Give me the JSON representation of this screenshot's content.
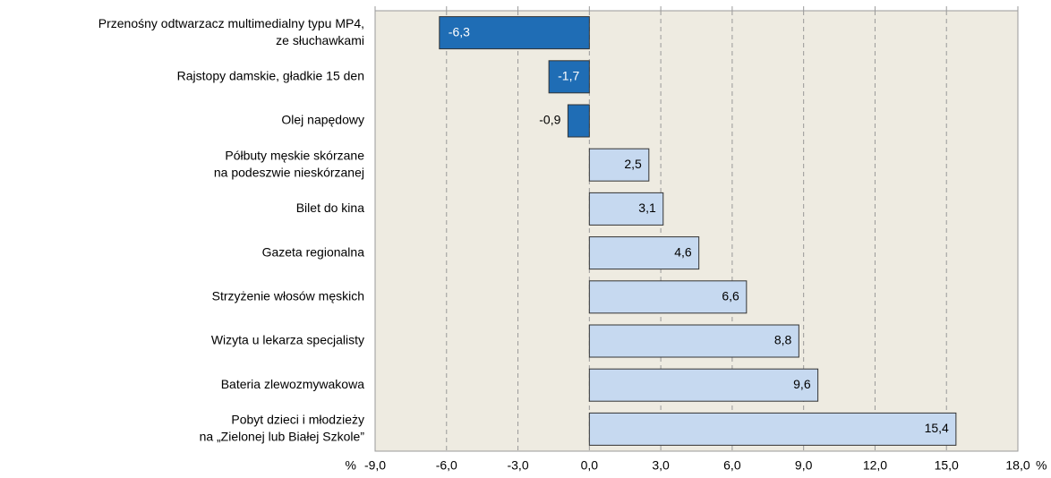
{
  "chart_data": {
    "type": "barh",
    "categories": [
      [
        "Przenośny odtwarzacz multimedialny typu MP4,",
        "ze słuchawkami"
      ],
      [
        "Rajstopy damskie, gładkie 15 den"
      ],
      [
        "Olej napędowy"
      ],
      [
        "Półbuty męskie skórzane",
        "na podeszwie nieskórzanej"
      ],
      [
        "Bilet do kina"
      ],
      [
        "Gazeta regionalna"
      ],
      [
        "Strzyżenie włosów męskich"
      ],
      [
        "Wizyta u lekarza specjalisty"
      ],
      [
        "Bateria zlewozmywakowa"
      ],
      [
        "Pobyt dzieci i młodzieży",
        "na „Zielonej lub Białej Szkole”"
      ]
    ],
    "values": [
      -6.3,
      -1.7,
      -0.9,
      2.5,
      3.1,
      4.6,
      6.6,
      8.8,
      9.6,
      15.4
    ],
    "value_labels": [
      "-6,3",
      "-1,7",
      "-0,9",
      "2,5",
      "3,1",
      "4,6",
      "6,6",
      "8,8",
      "9,6",
      "15,4"
    ],
    "colors": [
      "#1f6db5",
      "#1f6db5",
      "#1f6db5",
      "#c6d9f0",
      "#c6d9f0",
      "#c6d9f0",
      "#c6d9f0",
      "#c6d9f0",
      "#c6d9f0",
      "#c6d9f0"
    ],
    "xlim": [
      -9,
      18
    ],
    "xticks": [
      {
        "value": -9,
        "label": "-9,0"
      },
      {
        "value": -6,
        "label": "-6,0"
      },
      {
        "value": -3,
        "label": "-3,0"
      },
      {
        "value": 0,
        "label": "0,0"
      },
      {
        "value": 3,
        "label": "3,0"
      },
      {
        "value": 6,
        "label": "6,0"
      },
      {
        "value": 9,
        "label": "9,0"
      },
      {
        "value": 12,
        "label": "12,0"
      },
      {
        "value": 15,
        "label": "15,0"
      },
      {
        "value": 18,
        "label": "18,0"
      }
    ],
    "x_unit": "%",
    "grid": true
  }
}
